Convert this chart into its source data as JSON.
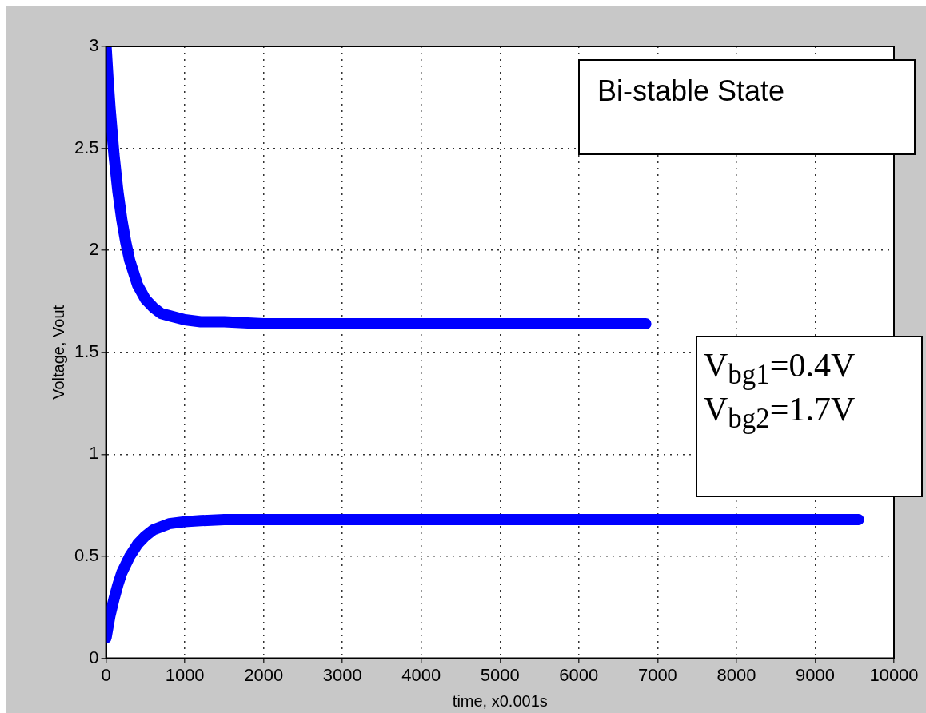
{
  "chart_data": {
    "type": "line",
    "xlabel": "time, x0.001s",
    "ylabel": "Voltage, Vout",
    "series": [
      {
        "color": "#0000ff",
        "x": [
          0,
          25,
          50,
          100,
          150,
          200,
          250,
          300,
          400,
          500,
          600,
          700,
          800,
          1000,
          1200,
          1500,
          2000,
          3000,
          4000,
          5000,
          6000,
          6850
        ],
        "values": [
          3.0,
          2.84,
          2.7,
          2.47,
          2.29,
          2.15,
          2.04,
          1.95,
          1.83,
          1.76,
          1.72,
          1.69,
          1.68,
          1.66,
          1.65,
          1.65,
          1.64,
          1.64,
          1.64,
          1.64,
          1.64,
          1.64
        ]
      },
      {
        "color": "#0000ff",
        "x": [
          0,
          50,
          100,
          150,
          200,
          300,
          400,
          500,
          600,
          800,
          1000,
          1200,
          1500,
          2000,
          3000,
          5000,
          7000,
          9550
        ],
        "values": [
          0.1,
          0.21,
          0.29,
          0.36,
          0.42,
          0.5,
          0.56,
          0.6,
          0.63,
          0.66,
          0.67,
          0.675,
          0.68,
          0.68,
          0.68,
          0.68,
          0.68,
          0.68
        ]
      }
    ],
    "xlim": [
      0,
      10000
    ],
    "xticks": [
      0,
      1000,
      2000,
      3000,
      4000,
      5000,
      6000,
      7000,
      8000,
      9000,
      10000
    ],
    "ylim": [
      0,
      3
    ],
    "yticks": [
      0,
      0.5,
      1,
      1.5,
      2,
      2.5,
      3
    ],
    "grid": true,
    "line_style": "solid",
    "annotations": [
      "Bi-stable State",
      "V$_{bg1}$=0.4V\nV$_{bg2}$=1.7V"
    ]
  }
}
